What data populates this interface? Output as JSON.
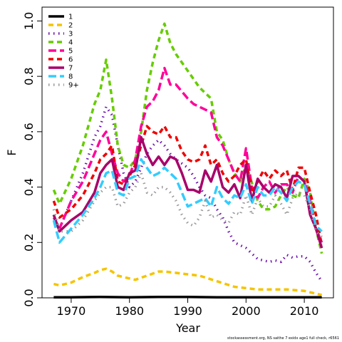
{
  "chart_data": {
    "type": "line",
    "xlabel": "Year",
    "ylabel": "F",
    "xlim": [
      1965,
      2015
    ],
    "ylim": [
      0,
      1.05
    ],
    "xticks": [
      1970,
      1980,
      1990,
      2000,
      2010
    ],
    "yticks": [
      0.0,
      0.2,
      0.4,
      0.6,
      0.8,
      1.0
    ],
    "ytick_labels": [
      "0.0",
      "0.2",
      "0.4",
      "0.6",
      "0.8",
      "1.0"
    ],
    "legend_position": "top-left",
    "footnote": "stockassessment.org, NS saithe 7 exidx age1 full check, r6561",
    "series": [
      {
        "name": "1",
        "color": "#000000",
        "dash": "solid",
        "x": [
          1967,
          1970,
          1975,
          1980,
          1985,
          1990,
          1995,
          2000,
          2005,
          2010,
          2013
        ],
        "y": [
          0.002,
          0.002,
          0.003,
          0.002,
          0.003,
          0.003,
          0.002,
          0.002,
          0.002,
          0.002,
          0.002
        ]
      },
      {
        "name": "2",
        "color": "#f5c400",
        "dash": "dashed",
        "x": [
          1967,
          1968,
          1970,
          1972,
          1974,
          1975,
          1976,
          1977,
          1978,
          1980,
          1981,
          1983,
          1985,
          1986,
          1988,
          1990,
          1992,
          1995,
          1998,
          2000,
          2002,
          2005,
          2007,
          2010,
          2012,
          2013
        ],
        "y": [
          0.05,
          0.045,
          0.055,
          0.075,
          0.09,
          0.1,
          0.105,
          0.095,
          0.08,
          0.07,
          0.065,
          0.08,
          0.095,
          0.095,
          0.09,
          0.085,
          0.08,
          0.06,
          0.04,
          0.035,
          0.03,
          0.03,
          0.03,
          0.025,
          0.015,
          0.01
        ]
      },
      {
        "name": "3",
        "color": "#6a0dad",
        "dash": "dotted",
        "x": [
          1967,
          1968,
          1970,
          1972,
          1974,
          1975,
          1976,
          1977,
          1978,
          1979,
          1980,
          1981,
          1982,
          1983,
          1984,
          1985,
          1986,
          1987,
          1988,
          1990,
          1991,
          1992,
          1993,
          1994,
          1995,
          1996,
          1997,
          1998,
          2000,
          2002,
          2004,
          2005,
          2006,
          2007,
          2008,
          2009,
          2010,
          2011,
          2012,
          2013
        ],
        "y": [
          0.3,
          0.25,
          0.35,
          0.45,
          0.58,
          0.62,
          0.69,
          0.66,
          0.55,
          0.45,
          0.4,
          0.42,
          0.47,
          0.52,
          0.55,
          0.57,
          0.55,
          0.52,
          0.5,
          0.47,
          0.44,
          0.4,
          0.37,
          0.36,
          0.32,
          0.29,
          0.24,
          0.2,
          0.18,
          0.14,
          0.13,
          0.135,
          0.13,
          0.155,
          0.145,
          0.15,
          0.15,
          0.13,
          0.09,
          0.06
        ]
      },
      {
        "name": "4",
        "color": "#66cc00",
        "dash": "dashed",
        "x": [
          1967,
          1968,
          1970,
          1972,
          1974,
          1975,
          1976,
          1977,
          1978,
          1979,
          1980,
          1981,
          1982,
          1983,
          1984,
          1985,
          1986,
          1987,
          1988,
          1990,
          1991,
          1992,
          1993,
          1994,
          1995,
          1996,
          1997,
          1998,
          1999,
          2000,
          2002,
          2003,
          2004,
          2005,
          2006,
          2007,
          2008,
          2009,
          2010,
          2011,
          2012,
          2013
        ],
        "y": [
          0.39,
          0.34,
          0.43,
          0.55,
          0.7,
          0.75,
          0.86,
          0.72,
          0.55,
          0.48,
          0.47,
          0.5,
          0.6,
          0.75,
          0.85,
          0.93,
          0.99,
          0.92,
          0.88,
          0.82,
          0.79,
          0.76,
          0.74,
          0.72,
          0.6,
          0.57,
          0.5,
          0.45,
          0.42,
          0.48,
          0.35,
          0.32,
          0.32,
          0.33,
          0.37,
          0.4,
          0.37,
          0.36,
          0.43,
          0.38,
          0.25,
          0.16
        ]
      },
      {
        "name": "5",
        "color": "#ff0099",
        "dash": "longdash",
        "x": [
          1967,
          1968,
          1970,
          1972,
          1974,
          1975,
          1976,
          1977,
          1978,
          1979,
          1980,
          1981,
          1982,
          1983,
          1984,
          1985,
          1986,
          1987,
          1988,
          1990,
          1991,
          1992,
          1993,
          1994,
          1995,
          1996,
          1997,
          1998,
          1999,
          2000,
          2001,
          2002,
          2003,
          2004,
          2005,
          2006,
          2007,
          2008,
          2009,
          2010,
          2011,
          2012,
          2013
        ],
        "y": [
          0.29,
          0.25,
          0.35,
          0.42,
          0.52,
          0.57,
          0.6,
          0.52,
          0.45,
          0.42,
          0.44,
          0.5,
          0.62,
          0.69,
          0.71,
          0.75,
          0.83,
          0.77,
          0.77,
          0.72,
          0.7,
          0.69,
          0.68,
          0.67,
          0.58,
          0.55,
          0.5,
          0.45,
          0.42,
          0.54,
          0.4,
          0.36,
          0.4,
          0.42,
          0.38,
          0.41,
          0.41,
          0.38,
          0.44,
          0.42,
          0.35,
          0.25,
          0.2
        ]
      },
      {
        "name": "6",
        "color": "#ee0000",
        "dash": "dashed",
        "x": [
          1967,
          1968,
          1970,
          1972,
          1974,
          1975,
          1976,
          1977,
          1978,
          1979,
          1980,
          1981,
          1982,
          1983,
          1984,
          1985,
          1986,
          1987,
          1988,
          1989,
          1990,
          1991,
          1992,
          1993,
          1994,
          1995,
          1996,
          1997,
          1998,
          1999,
          2000,
          2001,
          2002,
          2003,
          2004,
          2005,
          2006,
          2007,
          2008,
          2009,
          2010,
          2011,
          2012,
          2013
        ],
        "y": [
          0.35,
          0.29,
          0.32,
          0.37,
          0.45,
          0.5,
          0.52,
          0.55,
          0.42,
          0.41,
          0.44,
          0.48,
          0.55,
          0.62,
          0.6,
          0.59,
          0.62,
          0.58,
          0.58,
          0.53,
          0.5,
          0.49,
          0.5,
          0.55,
          0.48,
          0.5,
          0.45,
          0.42,
          0.44,
          0.48,
          0.5,
          0.38,
          0.42,
          0.46,
          0.43,
          0.46,
          0.44,
          0.46,
          0.39,
          0.47,
          0.47,
          0.38,
          0.3,
          0.19
        ]
      },
      {
        "name": "7",
        "color": "#a8006a",
        "dash": "solid",
        "x": [
          1967,
          1968,
          1970,
          1972,
          1974,
          1975,
          1976,
          1977,
          1978,
          1979,
          1980,
          1981,
          1982,
          1983,
          1984,
          1985,
          1986,
          1987,
          1988,
          1989,
          1990,
          1991,
          1992,
          1993,
          1994,
          1995,
          1996,
          1997,
          1998,
          1999,
          2000,
          2001,
          2002,
          2003,
          2004,
          2005,
          2006,
          2007,
          2008,
          2009,
          2010,
          2011,
          2012,
          2013
        ],
        "y": [
          0.3,
          0.24,
          0.28,
          0.31,
          0.38,
          0.45,
          0.48,
          0.5,
          0.4,
          0.39,
          0.45,
          0.46,
          0.58,
          0.52,
          0.48,
          0.51,
          0.48,
          0.51,
          0.5,
          0.45,
          0.39,
          0.39,
          0.38,
          0.46,
          0.42,
          0.48,
          0.4,
          0.38,
          0.41,
          0.36,
          0.48,
          0.35,
          0.43,
          0.4,
          0.38,
          0.41,
          0.4,
          0.36,
          0.44,
          0.44,
          0.42,
          0.3,
          0.25,
          0.18
        ]
      },
      {
        "name": "8",
        "color": "#33ccff",
        "dash": "longdash",
        "x": [
          1967,
          1968,
          1970,
          1972,
          1974,
          1975,
          1976,
          1977,
          1978,
          1979,
          1980,
          1981,
          1982,
          1983,
          1984,
          1985,
          1986,
          1987,
          1988,
          1989,
          1990,
          1991,
          1992,
          1993,
          1994,
          1995,
          1996,
          1997,
          1998,
          1999,
          2000,
          2001,
          2002,
          2003,
          2004,
          2005,
          2006,
          2007,
          2008,
          2009,
          2010,
          2011,
          2012,
          2013
        ],
        "y": [
          0.28,
          0.2,
          0.25,
          0.3,
          0.36,
          0.4,
          0.45,
          0.46,
          0.38,
          0.37,
          0.43,
          0.44,
          0.5,
          0.47,
          0.44,
          0.45,
          0.47,
          0.45,
          0.43,
          0.38,
          0.33,
          0.34,
          0.35,
          0.36,
          0.33,
          0.4,
          0.36,
          0.34,
          0.37,
          0.36,
          0.41,
          0.34,
          0.4,
          0.37,
          0.37,
          0.4,
          0.38,
          0.35,
          0.4,
          0.42,
          0.41,
          0.34,
          0.26,
          0.24
        ]
      },
      {
        "name": "9+",
        "color": "#999999",
        "dash": "dotted",
        "x": [
          1967,
          1968,
          1970,
          1972,
          1974,
          1975,
          1976,
          1977,
          1978,
          1979,
          1980,
          1981,
          1982,
          1983,
          1984,
          1985,
          1986,
          1987,
          1988,
          1989,
          1990,
          1991,
          1992,
          1993,
          1994,
          1995,
          1996,
          1997,
          1998,
          1999,
          2000,
          2001,
          2002,
          2003,
          2004,
          2005,
          2006,
          2007,
          2008,
          2009,
          2010,
          2011,
          2012,
          2013
        ],
        "y": [
          0.32,
          0.24,
          0.24,
          0.28,
          0.35,
          0.38,
          0.4,
          0.4,
          0.33,
          0.34,
          0.38,
          0.4,
          0.45,
          0.38,
          0.37,
          0.4,
          0.4,
          0.38,
          0.35,
          0.3,
          0.27,
          0.26,
          0.29,
          0.35,
          0.29,
          0.3,
          0.28,
          0.27,
          0.31,
          0.3,
          0.37,
          0.3,
          0.36,
          0.33,
          0.33,
          0.37,
          0.34,
          0.3,
          0.36,
          0.38,
          0.37,
          0.32,
          0.24,
          0.22
        ]
      }
    ]
  }
}
